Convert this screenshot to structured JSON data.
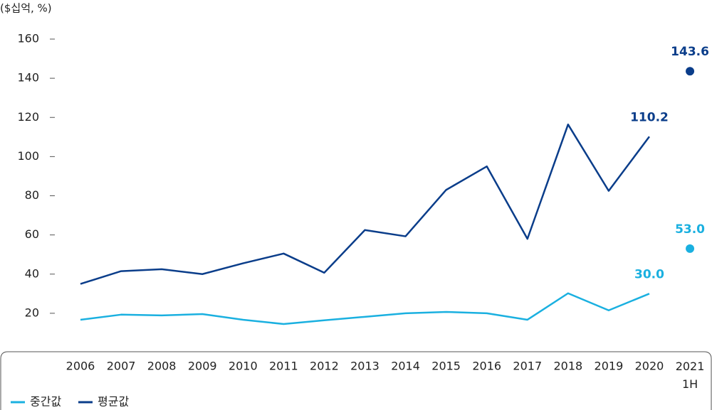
{
  "chart_data": {
    "type": "line",
    "y_label": "($십억, %)",
    "categories": [
      "2006",
      "2007",
      "2008",
      "2009",
      "2010",
      "2011",
      "2012",
      "2013",
      "2014",
      "2015",
      "2016",
      "2017",
      "2018",
      "2019",
      "2020",
      "2021\n1H"
    ],
    "series": [
      {
        "name": "중간값",
        "color": "#1ab0e0",
        "values": [
          16.7,
          19.3,
          18.9,
          19.6,
          16.7,
          14.5,
          16.4,
          18.2,
          20,
          20.7,
          20,
          16.7,
          30.2,
          21.5,
          30.0,
          53.0
        ],
        "value_labels": [
          null,
          null,
          null,
          null,
          null,
          null,
          null,
          null,
          null,
          null,
          null,
          null,
          null,
          null,
          "30.0",
          "53.0"
        ]
      },
      {
        "name": "평균값",
        "color": "#0a3d8a",
        "values": [
          35,
          41.5,
          42.5,
          40,
          45.5,
          50.5,
          40.7,
          62.5,
          59.3,
          83,
          95,
          58,
          116.4,
          82.5,
          110.2,
          143.6
        ],
        "value_labels": [
          null,
          null,
          null,
          null,
          null,
          null,
          null,
          null,
          null,
          null,
          null,
          null,
          null,
          null,
          "110.2",
          "143.6"
        ]
      }
    ],
    "ylim": [
      0,
      160
    ],
    "yticks": [
      20,
      40,
      60,
      80,
      100,
      120,
      140,
      160
    ]
  }
}
